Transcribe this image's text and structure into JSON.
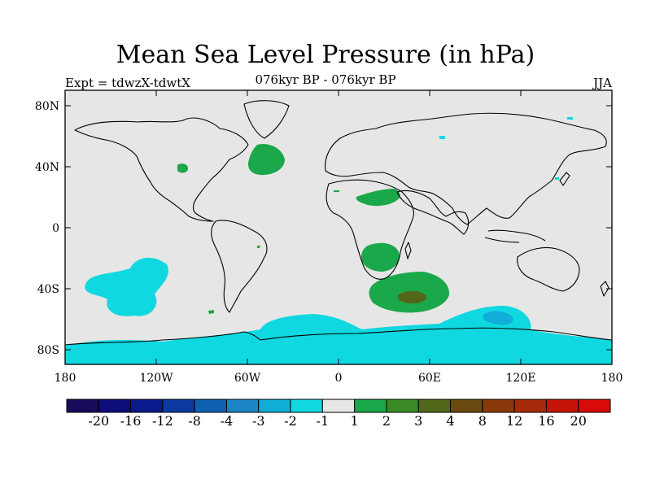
{
  "title": "Mean Sea Level Pressure (in hPa)",
  "left_string": "Expt = tdwzX-tdwtX",
  "center_string": "076kyr BP - 076kyr BP",
  "right_string": "JJA",
  "x_ticks": [
    {
      "label": "180",
      "lon": -180
    },
    {
      "label": "120W",
      "lon": -120
    },
    {
      "label": "60W",
      "lon": -60
    },
    {
      "label": "0",
      "lon": 0
    },
    {
      "label": "60E",
      "lon": 60
    },
    {
      "label": "120E",
      "lon": 120
    },
    {
      "label": "180",
      "lon": 180
    }
  ],
  "y_ticks": [
    {
      "label": "80N",
      "lat": 80
    },
    {
      "label": "40N",
      "lat": 40
    },
    {
      "label": "0",
      "lat": 0
    },
    {
      "label": "40S",
      "lat": -40
    },
    {
      "label": "80S",
      "lat": -80
    }
  ],
  "colorbar": {
    "colors": [
      "#1a0a5c",
      "#0d0d7a",
      "#0a1a8c",
      "#0a3a9e",
      "#1060b0",
      "#1a86c4",
      "#10aed8",
      "#10d8e0",
      "#e6e6e6",
      "#1aa84a",
      "#3a8a26",
      "#52661a",
      "#6a4a10",
      "#8a3a0a",
      "#a82a0a",
      "#c4140a",
      "#d80a0a"
    ],
    "labels": [
      "-20",
      "-16",
      "-12",
      "-8",
      "-4",
      "-3",
      "-2",
      "-1",
      "1",
      "2",
      "3",
      "4",
      "8",
      "12",
      "16",
      "20"
    ]
  },
  "chart_data": {
    "type": "contour-map",
    "variable": "Mean Sea Level Pressure difference (hPa)",
    "season": "JJA",
    "xlim": [
      -180,
      180
    ],
    "ylim": [
      -90,
      90
    ],
    "levels": [
      -20,
      -16,
      -12,
      -8,
      -4,
      -3,
      -2,
      -1,
      1,
      2,
      3,
      4,
      8,
      12,
      16,
      20
    ],
    "positive_regions": [
      {
        "name": "north-atlantic",
        "lon": -42,
        "lat": 43,
        "range": "1 to 2"
      },
      {
        "name": "north-africa",
        "lon": 22,
        "lat": 20,
        "range": "1 to 2"
      },
      {
        "name": "southern-africa",
        "lon": 25,
        "lat": -20,
        "range": "1 to 2"
      },
      {
        "name": "south-indian-ocean",
        "lon": 50,
        "lat": -45,
        "range": "2 to 3"
      }
    ],
    "negative_regions": [
      {
        "name": "south-pacific",
        "lon": -130,
        "lat": -45,
        "range": "-1 to -2"
      },
      {
        "name": "southern-ocean-indian",
        "lon": 110,
        "lat": -56,
        "range": "-2 to -3"
      },
      {
        "name": "antarctic-belt",
        "lon": 0,
        "lat": -82,
        "range": "-1 to -2"
      }
    ]
  }
}
